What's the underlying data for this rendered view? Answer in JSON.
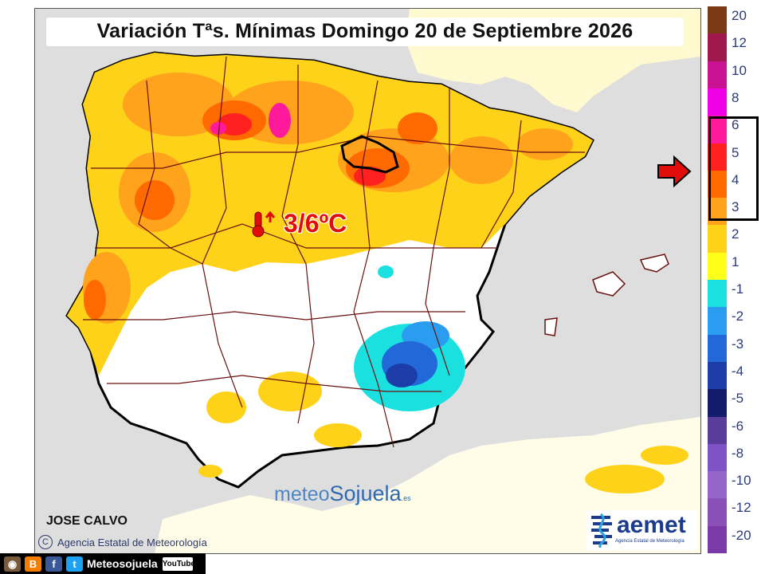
{
  "title": "Variación Tªs. Mínimas Domingo 20 de Septiembre 2026",
  "temperature_label": "3/6ºC",
  "author": "JOSE CALVO",
  "credit": "Agencia Estatal de Meteorología",
  "watermark": {
    "part1": "meteo",
    "part2": "Sojuela",
    "suffix": ".es"
  },
  "aemet": {
    "name": "aemet",
    "subtitle": "Agencia Estatal de Meteorología"
  },
  "social": {
    "name": "Meteosojuela",
    "youtube": "YouTube"
  },
  "legend": {
    "entries": [
      {
        "label": "20",
        "color": "#7a3a14"
      },
      {
        "label": "12",
        "color": "#a0184c"
      },
      {
        "label": "10",
        "color": "#c91394"
      },
      {
        "label": "8",
        "color": "#f000e6"
      },
      {
        "label": "6",
        "color": "#ff1a9c"
      },
      {
        "label": "5",
        "color": "#ff2020"
      },
      {
        "label": "4",
        "color": "#ff6a00"
      },
      {
        "label": "3",
        "color": "#ffa21c"
      },
      {
        "label": "2",
        "color": "#ffd21a"
      },
      {
        "label": "1",
        "color": "#ffff1a"
      },
      {
        "label": "-1",
        "color": "#1ae0e0"
      },
      {
        "label": "-2",
        "color": "#2a9df0"
      },
      {
        "label": "-3",
        "color": "#2268d8"
      },
      {
        "label": "-4",
        "color": "#1c3ca8"
      },
      {
        "label": "-5",
        "color": "#121c6a"
      },
      {
        "label": "-6",
        "color": "#5a3c9a"
      },
      {
        "label": "-8",
        "color": "#7f52c6"
      },
      {
        "label": "-10",
        "color": "#9466cc"
      },
      {
        "label": "-12",
        "color": "#8a50b8"
      },
      {
        "label": "-20",
        "color": "#7a3aa8"
      }
    ]
  },
  "colors": {
    "sea": "#dedede",
    "land_neutral": "#ffffff",
    "accent_red": "#e10c0c",
    "border": "#6a1010"
  },
  "icons": [
    "thermometer-icon",
    "arrow-up-icon",
    "arrow-right-icon",
    "copyright-icon",
    "instagram-icon",
    "blogger-icon",
    "facebook-icon",
    "twitter-icon",
    "youtube-icon"
  ]
}
